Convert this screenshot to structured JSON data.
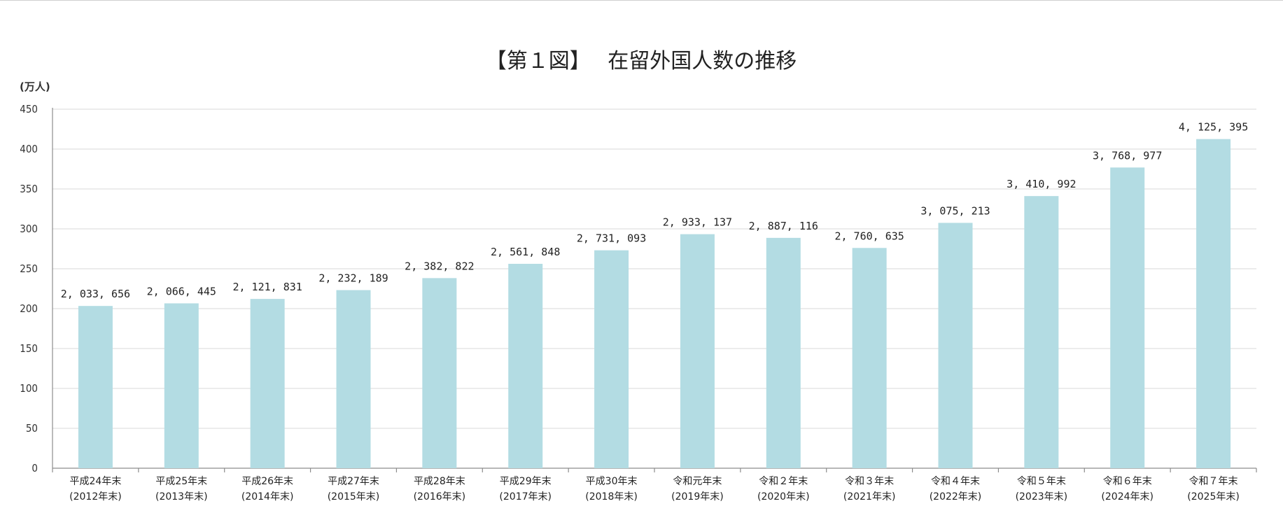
{
  "chart_data": {
    "type": "bar",
    "title": "【第１図】　 在留外国人数の推移",
    "ylabel": "(万人)",
    "xlabel": "",
    "ylim": [
      0,
      450
    ],
    "yticks": [
      0,
      50,
      100,
      150,
      200,
      250,
      300,
      350,
      400,
      450
    ],
    "grid": true,
    "legend": "none",
    "bar_color": "#b3dce3",
    "categories": [
      [
        "平成24年末",
        "(2012年末)"
      ],
      [
        "平成25年末",
        "(2013年末)"
      ],
      [
        "平成26年末",
        "(2014年末)"
      ],
      [
        "平成27年末",
        "(2015年末)"
      ],
      [
        "平成28年末",
        "(2016年末)"
      ],
      [
        "平成29年末",
        "(2017年末)"
      ],
      [
        "平成30年末",
        "(2018年末)"
      ],
      [
        "令和元年末",
        "(2019年末)"
      ],
      [
        "令和２年末",
        "(2020年末)"
      ],
      [
        "令和３年末",
        "(2021年末)"
      ],
      [
        "令和４年末",
        "(2022年末)"
      ],
      [
        "令和５年末",
        "(2023年末)"
      ],
      [
        "令和６年末",
        "(2024年末)"
      ],
      [
        "令和７年末",
        "(2025年末)"
      ]
    ],
    "values": [
      2033656,
      2066445,
      2121831,
      2232189,
      2382822,
      2561848,
      2731093,
      2933137,
      2887116,
      2760635,
      3075213,
      3410992,
      3768977,
      4125395
    ],
    "data_labels": [
      "2, 033, 656",
      "2, 066, 445",
      "2, 121, 831",
      "2, 232, 189",
      "2, 382, 822",
      "2, 561, 848",
      "2, 731, 093",
      "2, 933, 137",
      "2, 887, 116",
      "2, 760, 635",
      "3, 075, 213",
      "3, 410, 992",
      "3, 768, 977",
      "4, 125, 395"
    ]
  }
}
